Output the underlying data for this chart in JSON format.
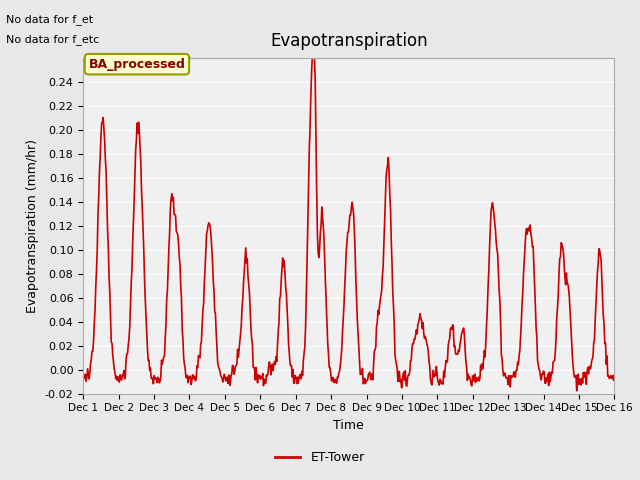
{
  "title": "Evapotranspiration",
  "ylabel": "Evapotranspiration (mm/hr)",
  "xlabel": "Time",
  "xlim_days": [
    0,
    15
  ],
  "ylim": [
    -0.02,
    0.26
  ],
  "yticks": [
    -0.02,
    0.0,
    0.02,
    0.04,
    0.06,
    0.08,
    0.1,
    0.12,
    0.14,
    0.16,
    0.18,
    0.2,
    0.22,
    0.24
  ],
  "xtick_labels": [
    "Dec 1",
    "Dec 2",
    "Dec 3",
    "Dec 4",
    "Dec 5",
    "Dec 6",
    "Dec 7",
    "Dec 8",
    "Dec 9",
    "Dec 10",
    "Dec 11",
    "Dec 12",
    "Dec 13",
    "Dec 14",
    "Dec 15",
    "Dec 16"
  ],
  "line_color": "#cc0000",
  "line_width": 1.2,
  "bg_color": "#e8e8e8",
  "plot_bg_color": "#f0f0f0",
  "top_left_text1": "No data for f_et",
  "top_left_text2": "No data for f_etc",
  "banner_text": "BA_processed",
  "banner_bg": "#ffffcc",
  "banner_border": "#999900",
  "legend_label": "ET-Tower",
  "legend_line_color": "#cc0000"
}
